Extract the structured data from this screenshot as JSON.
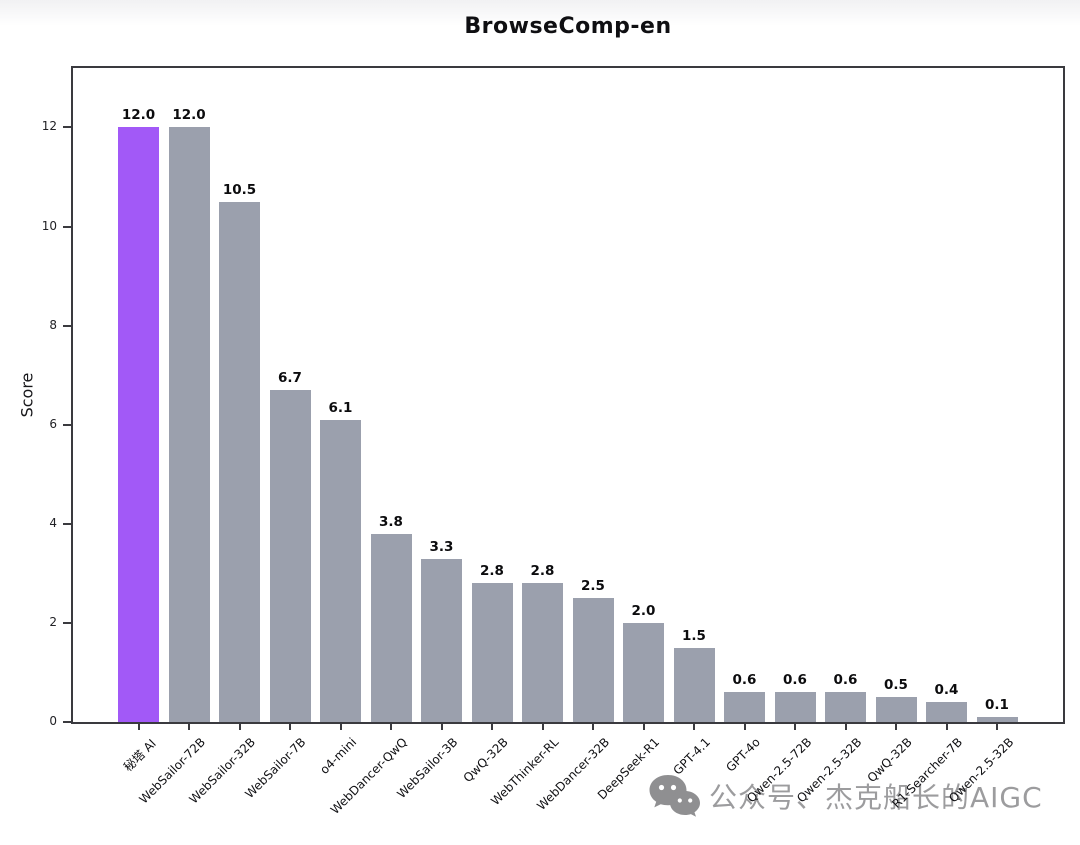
{
  "title": "BrowseComp-en",
  "chart_data": {
    "type": "bar",
    "title": "BrowseComp-en",
    "xlabel": "",
    "ylabel": "Score",
    "categories": [
      "秘塔 AI",
      "WebSailor-72B",
      "WebSailor-32B",
      "WebSailor-7B",
      "o4-mini",
      "WebDancer-QwQ",
      "WebSailor-3B",
      "QwQ-32B",
      "WebThinker-RL",
      "WebDancer-32B",
      "DeepSeek-R1",
      "GPT-4.1",
      "GPT-4o",
      "Qwen-2.5-72B",
      "Qwen-2.5-32B",
      "QwQ-32B",
      "R1-Searcher-7B",
      "Qwen-2.5-32B"
    ],
    "values": [
      12.0,
      12.0,
      10.5,
      6.7,
      6.1,
      3.8,
      3.3,
      2.8,
      2.8,
      2.5,
      2.0,
      1.5,
      0.6,
      0.6,
      0.6,
      0.5,
      0.4,
      0.1
    ],
    "value_label_decimals": 1,
    "ylim": [
      0,
      13.2
    ],
    "yticks": [
      0,
      2,
      4,
      6,
      8,
      10,
      12
    ],
    "grid": false,
    "legend": false,
    "x_tick_rotation_deg": 45,
    "highlight_index": 0,
    "colors": {
      "highlight_bar": "#a259f7",
      "default_bar": "#9ba0ad",
      "axis": "#3a3a3f",
      "value_label": "#0c0c0e",
      "tick_label": "#222226"
    }
  },
  "watermark": {
    "icon": "wechat-icon",
    "text": "公众号、杰克船长的AIGC",
    "color": "#9c9c9e"
  }
}
